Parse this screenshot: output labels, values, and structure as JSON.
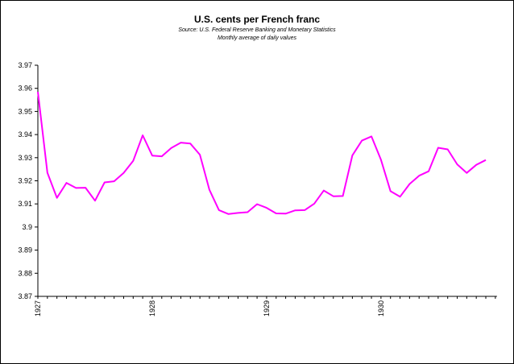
{
  "chart_data": {
    "type": "line",
    "title": "U.S. cents per French franc",
    "subtitle_1": "Source: U.S. Federal Reserve Banking and Monetary Statistics",
    "subtitle_2": "Monthly average of daily values",
    "ylim": [
      3.87,
      3.97
    ],
    "y_ticks": [
      "3.97",
      "3.96",
      "3.95",
      "3.94",
      "3.93",
      "3.92",
      "3.91",
      "3.9",
      "3.89",
      "3.88",
      "3.87"
    ],
    "x_tick_labels": [
      "1927",
      "1928",
      "1929",
      "1930"
    ],
    "x_tick_month_index": [
      0,
      12,
      24,
      36
    ],
    "grid": false,
    "legend": "none",
    "line_color": "#ff00ff",
    "x": [
      "1927-01",
      "1927-02",
      "1927-03",
      "1927-04",
      "1927-05",
      "1927-06",
      "1927-07",
      "1927-08",
      "1927-09",
      "1927-10",
      "1927-11",
      "1927-12",
      "1928-01",
      "1928-02",
      "1928-03",
      "1928-04",
      "1928-05",
      "1928-06",
      "1928-07",
      "1928-08",
      "1928-09",
      "1928-10",
      "1928-11",
      "1928-12",
      "1929-01",
      "1929-02",
      "1929-03",
      "1929-04",
      "1929-05",
      "1929-06",
      "1929-07",
      "1929-08",
      "1929-09",
      "1929-10",
      "1929-11",
      "1929-12",
      "1930-01",
      "1930-02",
      "1930-03",
      "1930-04",
      "1930-05",
      "1930-06",
      "1930-07",
      "1930-08",
      "1930-09",
      "1930-10",
      "1930-11",
      "1930-12"
    ],
    "values": [
      3.9585,
      3.9235,
      3.9126,
      3.9191,
      3.9169,
      3.917,
      3.9114,
      3.9193,
      3.9198,
      3.9234,
      3.9286,
      3.9397,
      3.9309,
      3.9306,
      3.9342,
      3.9365,
      3.9361,
      3.9313,
      3.9161,
      3.9073,
      3.9056,
      3.9061,
      3.9064,
      3.9099,
      3.9083,
      3.9059,
      3.9058,
      3.9072,
      3.9073,
      3.9101,
      3.9158,
      3.9133,
      3.9134,
      3.931,
      3.9374,
      3.9392,
      3.9291,
      3.9155,
      3.9131,
      3.9186,
      3.9222,
      3.9241,
      3.9343,
      3.9336,
      3.9271,
      3.9234,
      3.9269,
      3.929
    ]
  }
}
